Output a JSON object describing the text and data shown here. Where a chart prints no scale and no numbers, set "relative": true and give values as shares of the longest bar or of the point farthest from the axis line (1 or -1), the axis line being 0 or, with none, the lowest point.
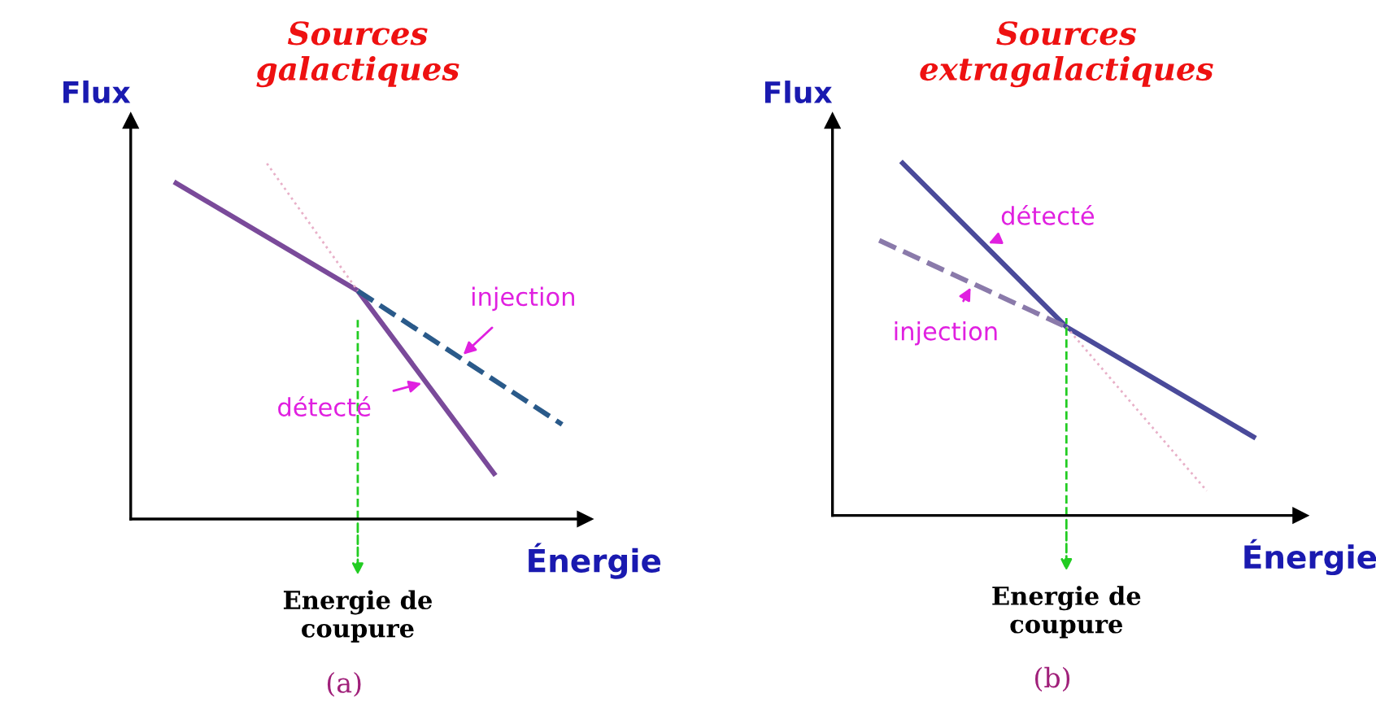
{
  "chart_data": [
    {
      "type": "line",
      "title": "Sources\ngalactiques",
      "xlabel": "Énergie",
      "ylabel": "Flux",
      "relative": true,
      "legend": false,
      "categories": [
        null,
        null,
        null,
        null,
        null,
        null,
        null,
        null,
        null,
        null,
        null,
        null,
        null,
        null,
        null,
        null,
        null,
        null,
        null,
        null,
        null
      ],
      "series": [
        {
          "name": "détecté",
          "color": "#7a4a9a",
          "values": [
            null,
            null,
            0.945,
            null,
            null,
            null,
            null,
            null,
            null,
            null,
            0.642,
            null,
            null,
            null,
            null,
            null,
            0.128,
            null,
            null,
            null,
            null
          ],
          "line_style": "solid"
        },
        {
          "name": "injection",
          "color": "#2a5a8a",
          "values": [
            null,
            null,
            null,
            null,
            null,
            null,
            null,
            null,
            null,
            null,
            0.642,
            null,
            null,
            null,
            null,
            null,
            null,
            null,
            null,
            0.266,
            null
          ],
          "line_style": "dashed"
        },
        {
          "color": "#e8b0c8",
          "values": [
            null,
            null,
            null,
            null,
            null,
            null,
            1,
            null,
            null,
            null,
            0.642,
            null,
            null,
            null,
            null,
            null,
            null,
            null,
            null,
            null,
            null
          ],
          "line_style": "dotted"
        }
      ],
      "annotations": [
        "Energie de\ncoupure",
        "(a)"
      ]
    },
    {
      "type": "line",
      "title": "Sources\nextragalactiques",
      "xlabel": "Énergie",
      "ylabel": "Flux",
      "relative": true,
      "legend": false,
      "categories": [
        null,
        null,
        null,
        null,
        null,
        null,
        null,
        null,
        null,
        null,
        null,
        null,
        null,
        null,
        null,
        null,
        null,
        null,
        null,
        null,
        null
      ],
      "series": [
        {
          "name": "détecté",
          "color": "#4a4a9a",
          "values": [
            null,
            null,
            null,
            1,
            null,
            null,
            null,
            null,
            null,
            null,
            0.535,
            null,
            null,
            null,
            null,
            null,
            null,
            null,
            0.223,
            null,
            null
          ],
          "line_style": "solid"
        },
        {
          "name": "injection",
          "color": "#8a7aaa",
          "values": [
            null,
            null,
            0.781,
            null,
            null,
            null,
            null,
            null,
            null,
            null,
            0.535,
            null,
            null,
            null,
            null,
            null,
            null,
            null,
            null,
            null,
            null
          ],
          "line_style": "dashed"
        },
        {
          "color": "#e8b0c8",
          "values": [
            null,
            null,
            null,
            null,
            null,
            null,
            null,
            null,
            null,
            null,
            0.535,
            null,
            null,
            null,
            null,
            null,
            0.07,
            null,
            null,
            null,
            null
          ],
          "line_style": "dotted"
        }
      ],
      "annotations": [
        "Energie de\ncoupure",
        "(b)"
      ]
    }
  ]
}
